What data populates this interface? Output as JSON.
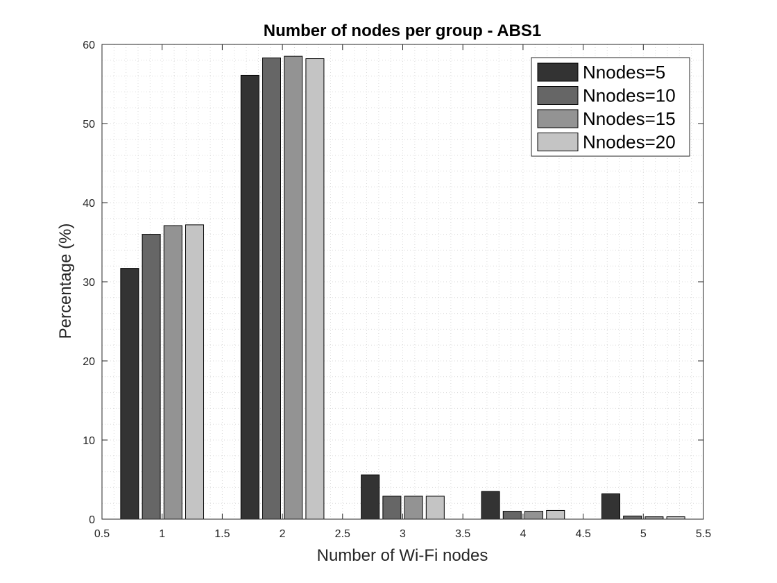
{
  "chart_data": {
    "type": "bar",
    "title": "Number of nodes per group - ABS1",
    "xlabel": "Number of Wi-Fi nodes",
    "ylabel": "Percentage (%)",
    "categories": [
      1,
      2,
      3,
      4,
      5
    ],
    "xlim": [
      0.5,
      5.5
    ],
    "ylim": [
      0,
      60
    ],
    "xticks": [
      "0.5",
      "1",
      "1.5",
      "2",
      "2.5",
      "3",
      "3.5",
      "4",
      "4.5",
      "5",
      "5.5"
    ],
    "yticks": [
      "0",
      "10",
      "20",
      "30",
      "40",
      "50",
      "60"
    ],
    "grid": "dotted-minor",
    "legend_position": "top-right",
    "series": [
      {
        "name": "Nnodes=5",
        "color": "#333333",
        "values": [
          31.7,
          56.1,
          5.6,
          3.5,
          3.2
        ]
      },
      {
        "name": "Nnodes=10",
        "color": "#666666",
        "values": [
          36.0,
          58.3,
          2.9,
          1.0,
          0.4
        ]
      },
      {
        "name": "Nnodes=15",
        "color": "#939393",
        "values": [
          37.1,
          58.5,
          2.9,
          1.0,
          0.3
        ]
      },
      {
        "name": "Nnodes=20",
        "color": "#c4c4c4",
        "values": [
          37.2,
          58.2,
          2.9,
          1.1,
          0.3
        ]
      }
    ]
  }
}
